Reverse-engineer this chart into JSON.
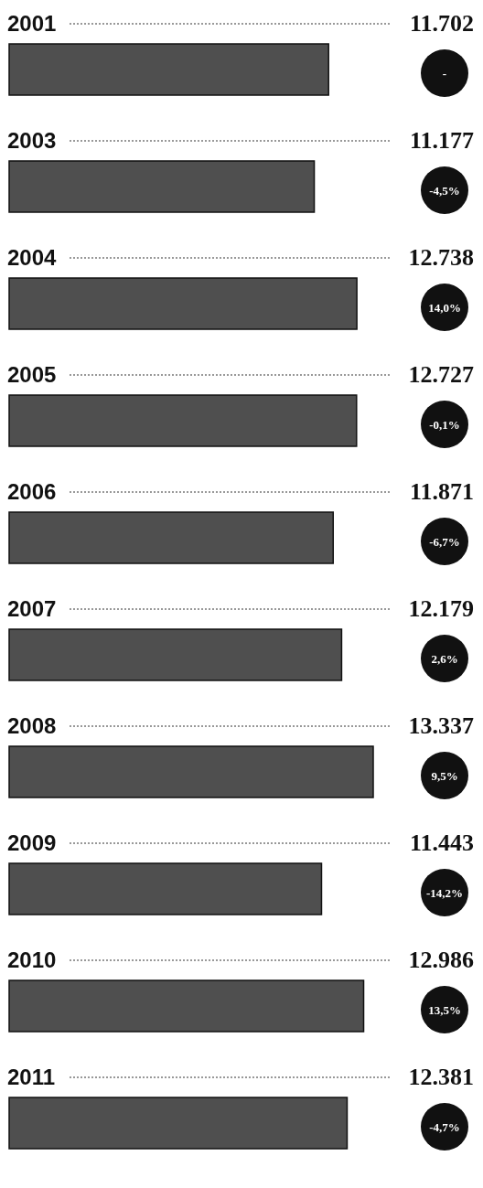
{
  "chart_data": {
    "type": "bar",
    "orientation": "horizontal",
    "categories": [
      "2001",
      "2003",
      "2004",
      "2005",
      "2006",
      "2007",
      "2008",
      "2009",
      "2010",
      "2011"
    ],
    "values": [
      11702,
      11177,
      12738,
      12727,
      11871,
      12179,
      13337,
      11443,
      12986,
      12381
    ],
    "value_labels": [
      "11.702",
      "11.177",
      "12.738",
      "12.727",
      "11.871",
      "12.179",
      "13.337",
      "11.443",
      "12.986",
      "12.381"
    ],
    "color": "#4f4f4f",
    "annotations": [
      "-",
      "-4,5%",
      "14,0%",
      "-0,1%",
      "-6,7%",
      "2,6%",
      "9,5%",
      "-14,2%",
      "13,5%",
      "-4,7%"
    ]
  }
}
